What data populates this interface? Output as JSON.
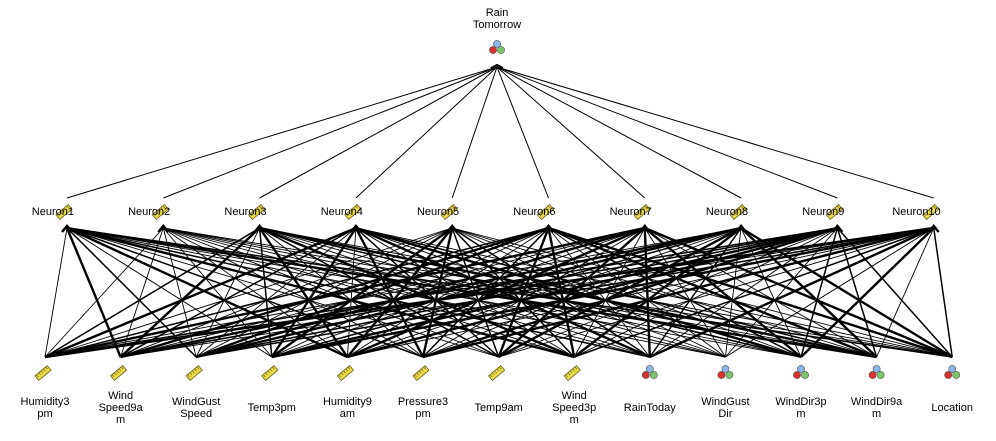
{
  "output": {
    "label_lines": [
      "Rain",
      "Tomorrow"
    ],
    "icon": "nominal-icon"
  },
  "hidden": [
    {
      "label": "Neuron1"
    },
    {
      "label": "Neuron2"
    },
    {
      "label": "Neuron3"
    },
    {
      "label": "Neuron4"
    },
    {
      "label": "Neuron5"
    },
    {
      "label": "Neuron6"
    },
    {
      "label": "Neuron7"
    },
    {
      "label": "Neuron8"
    },
    {
      "label": "Neuron9"
    },
    {
      "label": "Neuron10"
    }
  ],
  "inputs": [
    {
      "label_lines": [
        "Humidity3",
        "pm"
      ],
      "icon": "ruler-icon"
    },
    {
      "label_lines": [
        "Wind",
        "Speed9a",
        "m"
      ],
      "icon": "ruler-icon"
    },
    {
      "label_lines": [
        "WindGust",
        "Speed"
      ],
      "icon": "ruler-icon"
    },
    {
      "label_lines": [
        "Temp3pm"
      ],
      "icon": "ruler-icon"
    },
    {
      "label_lines": [
        "Humidity9",
        "am"
      ],
      "icon": "ruler-icon"
    },
    {
      "label_lines": [
        "Pressure3",
        "pm"
      ],
      "icon": "ruler-icon"
    },
    {
      "label_lines": [
        "Temp9am"
      ],
      "icon": "ruler-icon"
    },
    {
      "label_lines": [
        "Wind",
        "Speed3p",
        "m"
      ],
      "icon": "ruler-icon"
    },
    {
      "label_lines": [
        "RainToday"
      ],
      "icon": "nominal-icon"
    },
    {
      "label_lines": [
        "WindGust",
        "Dir"
      ],
      "icon": "nominal-icon"
    },
    {
      "label_lines": [
        "WindDir3p",
        "m"
      ],
      "icon": "nominal-icon"
    },
    {
      "label_lines": [
        "WindDir9a",
        "m"
      ],
      "icon": "nominal-icon"
    },
    {
      "label_lines": [
        "Location"
      ],
      "icon": "nominal-icon"
    }
  ],
  "colors": {
    "line": "#000000",
    "ruler": "#e8d94a",
    "ball_red": "#d63030",
    "ball_green": "#7cc46a",
    "ball_blue": "#8ab4e6"
  }
}
